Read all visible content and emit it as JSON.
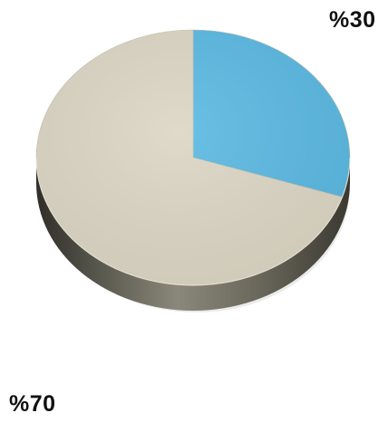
{
  "chart_data": {
    "type": "pie",
    "style": "3d",
    "slices": [
      {
        "label": "%30",
        "value": 30,
        "color": "#5bb9e2"
      },
      {
        "label": "%70",
        "value": 70,
        "color": "#dcd6c4"
      }
    ],
    "side_color": "#4f4d40",
    "legend": "none"
  }
}
